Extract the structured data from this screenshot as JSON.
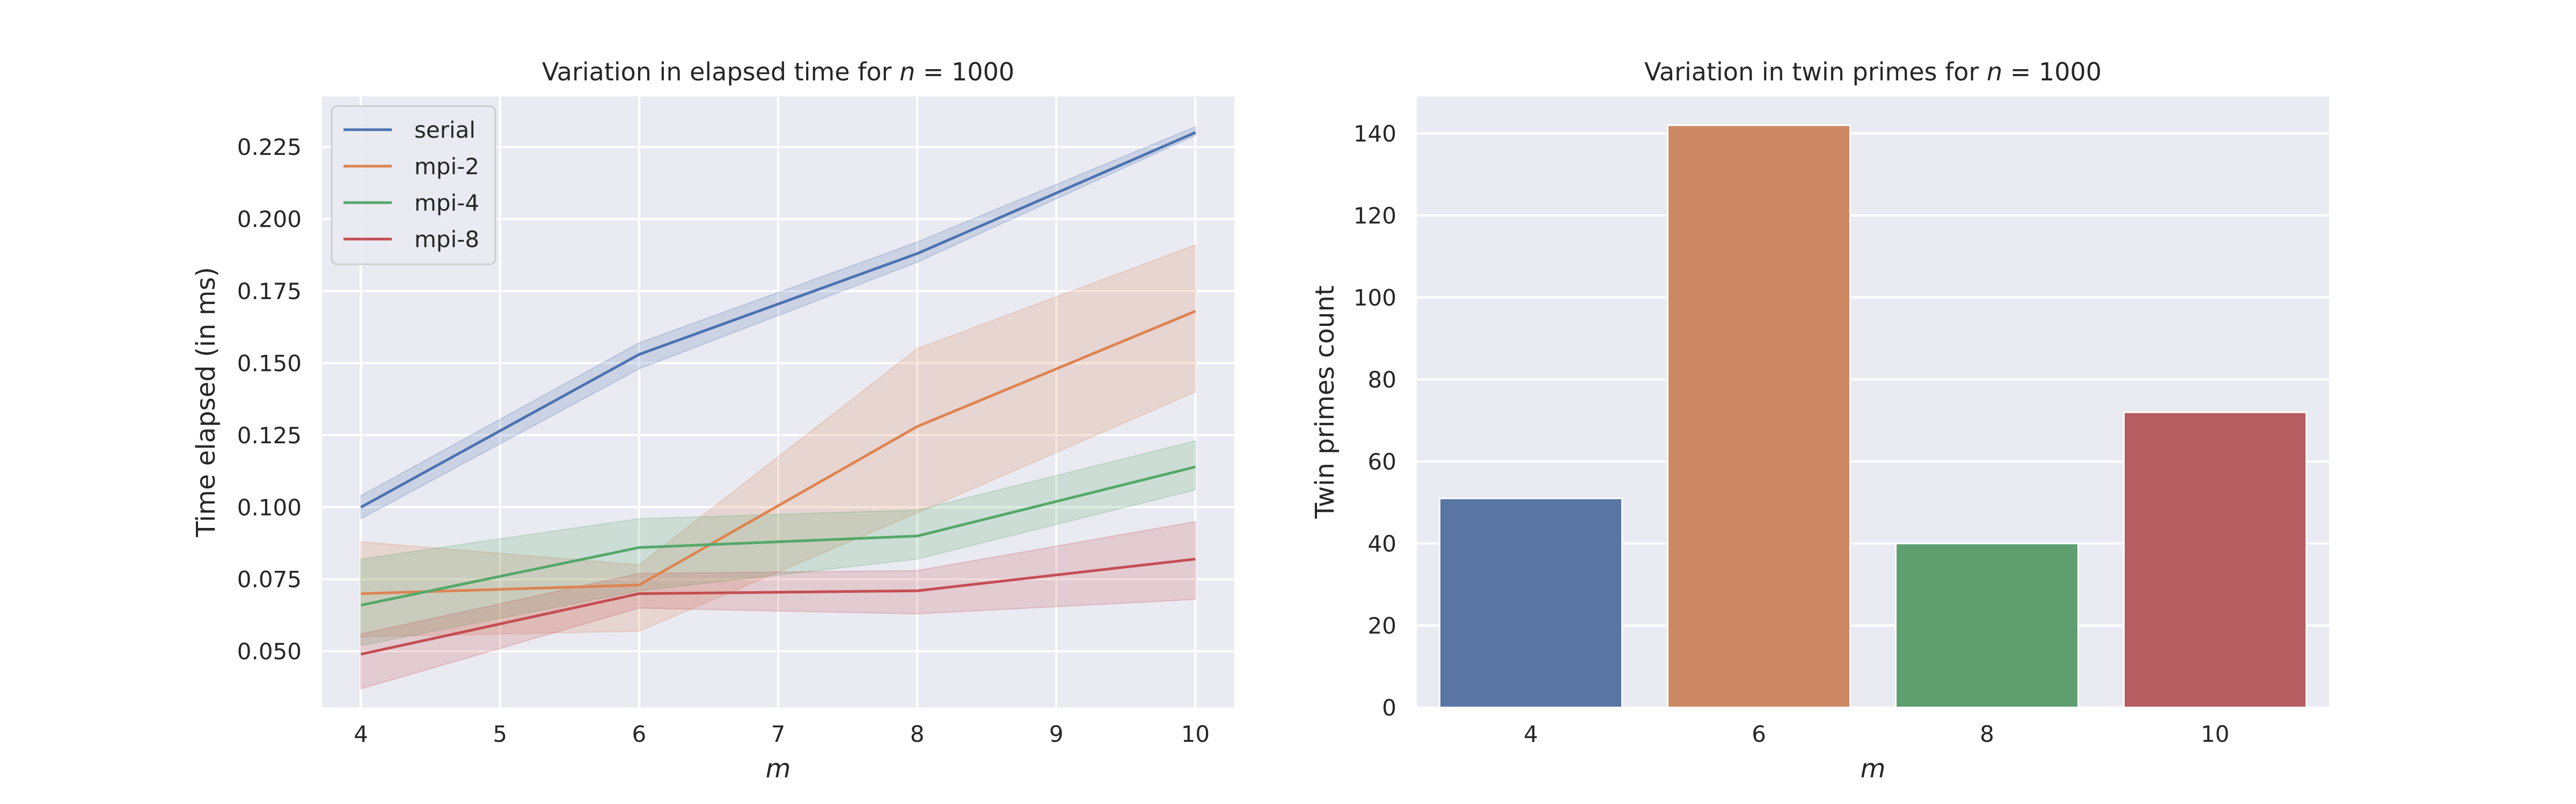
{
  "chart_data": [
    {
      "type": "line",
      "title": "Variation in elapsed time for n = 1000",
      "title_prefix": "Variation in elapsed time for ",
      "title_var": "n",
      "title_suffix": " = 1000",
      "xlabel": "m",
      "ylabel": "Time elapsed (in ms)",
      "xlim": [
        3.72,
        10.28
      ],
      "ylim": [
        0.0305,
        0.2425
      ],
      "x_ticks": [
        4,
        5,
        6,
        7,
        8,
        9,
        10
      ],
      "y_ticks": [
        0.05,
        0.075,
        0.1,
        0.125,
        0.15,
        0.175,
        0.2,
        0.225
      ],
      "y_tick_labels": [
        "0.050",
        "0.075",
        "0.100",
        "0.125",
        "0.150",
        "0.175",
        "0.200",
        "0.225"
      ],
      "x": [
        4,
        6,
        8,
        10
      ],
      "grid": true,
      "legend_position": "upper-left",
      "series": [
        {
          "name": "serial",
          "color": "#4c72b0",
          "values": [
            0.1,
            0.153,
            0.188,
            0.23
          ],
          "ci_lower": [
            0.096,
            0.148,
            0.185,
            0.229
          ],
          "ci_upper": [
            0.104,
            0.157,
            0.192,
            0.232
          ]
        },
        {
          "name": "mpi-2",
          "color": "#dd8452",
          "values": [
            0.07,
            0.073,
            0.128,
            0.168
          ],
          "ci_lower": [
            0.055,
            0.057,
            0.098,
            0.14
          ],
          "ci_upper": [
            0.088,
            0.08,
            0.155,
            0.191
          ]
        },
        {
          "name": "mpi-4",
          "color": "#55a868",
          "values": [
            0.066,
            0.086,
            0.09,
            0.114
          ],
          "ci_lower": [
            0.052,
            0.071,
            0.082,
            0.106
          ],
          "ci_upper": [
            0.082,
            0.096,
            0.099,
            0.123
          ]
        },
        {
          "name": "mpi-8",
          "color": "#c44e52",
          "values": [
            0.049,
            0.07,
            0.071,
            0.082
          ],
          "ci_lower": [
            0.037,
            0.065,
            0.063,
            0.068
          ],
          "ci_upper": [
            0.056,
            0.077,
            0.078,
            0.095
          ]
        }
      ]
    },
    {
      "type": "bar",
      "title": "Variation in twin primes for n = 1000",
      "title_prefix": "Variation in twin primes for ",
      "title_var": "n",
      "title_suffix": " = 1000",
      "xlabel": "m",
      "ylabel": "Twin primes count",
      "ylim": [
        0,
        149
      ],
      "y_ticks": [
        0,
        20,
        40,
        60,
        80,
        100,
        120,
        140
      ],
      "categories": [
        "4",
        "6",
        "8",
        "10"
      ],
      "values": [
        51,
        142,
        40,
        72
      ],
      "colors": [
        "#5975a4",
        "#cc8963",
        "#5f9e6e",
        "#b55d60"
      ],
      "grid": true
    }
  ]
}
